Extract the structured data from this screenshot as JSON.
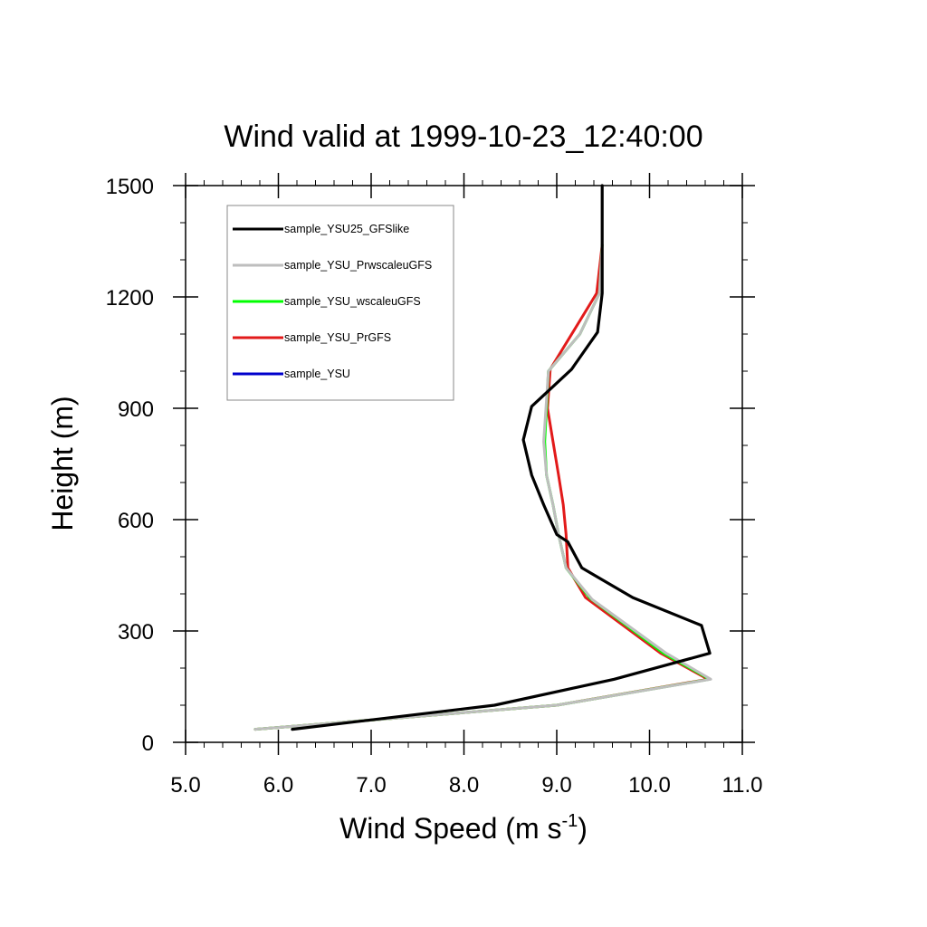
{
  "chart_data": {
    "type": "line",
    "title": "Wind valid at 1999-10-23_12:40:00",
    "xlabel": {
      "main": "Wind Speed (m s",
      "sup": "-1",
      "close": ")"
    },
    "ylabel": "Height (m)",
    "xlim": [
      5.0,
      11.0
    ],
    "ylim": [
      0,
      1500
    ],
    "xticks": [
      5.0,
      6.0,
      7.0,
      8.0,
      9.0,
      10.0,
      11.0
    ],
    "xtick_labels": [
      "5.0",
      "6.0",
      "7.0",
      "8.0",
      "9.0",
      "10.0",
      "11.0"
    ],
    "yticks": [
      0,
      300,
      600,
      900,
      1200,
      1500
    ],
    "ytick_labels": [
      "0",
      "300",
      "600",
      "900",
      "1200",
      "1500"
    ],
    "grid": false,
    "legend_position": "top-left",
    "series": [
      {
        "name": "sample_YSU25_GFSlike",
        "color": "#000000",
        "x": [
          6.15,
          8.33,
          9.62,
          10.65,
          10.56,
          9.82,
          9.27,
          9.12,
          9.0,
          8.86,
          8.73,
          8.64,
          8.73,
          9.16,
          9.44,
          9.49,
          9.49
        ],
        "y": [
          35,
          100,
          170,
          240,
          315,
          390,
          470,
          540,
          560,
          640,
          720,
          815,
          905,
          1005,
          1105,
          1210,
          1500
        ]
      },
      {
        "name": "sample_YSU_PrwscaleuGFS",
        "color": "#bebebe",
        "x": [
          5.75,
          9.0,
          10.66,
          10.18,
          9.38,
          9.1,
          9.02,
          8.96,
          8.89,
          8.86,
          8.91,
          9.25,
          9.46,
          9.49
        ],
        "y": [
          35,
          100,
          170,
          240,
          385,
          470,
          560,
          640,
          720,
          810,
          1000,
          1100,
          1210,
          1340
        ]
      },
      {
        "name": "sample_YSU_wscaleuGFS",
        "color": "#00ff00",
        "x": [
          5.75,
          9.0,
          10.65,
          10.15,
          9.36,
          9.1,
          9.02,
          8.96,
          8.89,
          8.87,
          8.91,
          9.25,
          9.46,
          9.49
        ],
        "y": [
          35,
          100,
          170,
          240,
          388,
          470,
          560,
          640,
          720,
          810,
          1000,
          1100,
          1210,
          1340
        ]
      },
      {
        "name": "sample_YSU_PrGFS",
        "color": "#e21a1a",
        "x": [
          5.75,
          9.0,
          10.63,
          10.12,
          9.31,
          9.12,
          9.1,
          9.07,
          9.02,
          8.96,
          8.9,
          8.93,
          9.43,
          9.49
        ],
        "y": [
          35,
          100,
          170,
          240,
          390,
          470,
          560,
          640,
          720,
          810,
          900,
          1005,
          1210,
          1340
        ]
      },
      {
        "name": "sample_YSU",
        "color": "#0000cc",
        "x": [],
        "y": []
      }
    ]
  }
}
